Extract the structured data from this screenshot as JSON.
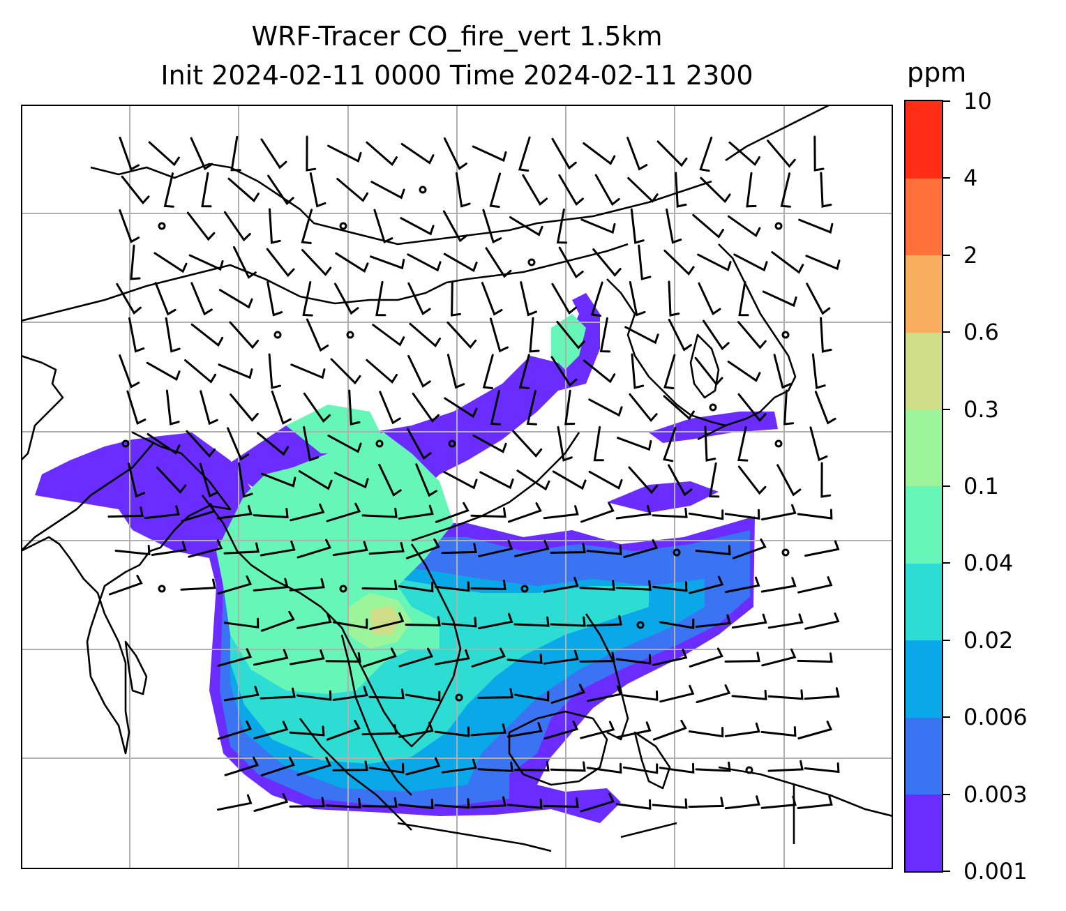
{
  "title": {
    "line1": "WRF-Tracer CO_fire_vert 1.5km",
    "line2": "Init 2024-02-11 0000 Time 2024-02-11 2300"
  },
  "colorbar": {
    "unit": "ppm",
    "levels": [
      "0.001",
      "0.003",
      "0.006",
      "0.02",
      "0.04",
      "0.1",
      "0.3",
      "0.6",
      "2",
      "4",
      "10"
    ],
    "colors": [
      "#6a2cff",
      "#3a74f2",
      "#0aa8e8",
      "#2ddcd3",
      "#66f7b8",
      "#9cf59a",
      "#d0dd87",
      "#f9ad5f",
      "#ff703b",
      "#ff2c16"
    ]
  },
  "map": {
    "gridlines": true,
    "gridline_color": "#b0b0b0",
    "coastline_color": "#000000",
    "wind_barbs": true,
    "field": "CO_fire_vert"
  }
}
